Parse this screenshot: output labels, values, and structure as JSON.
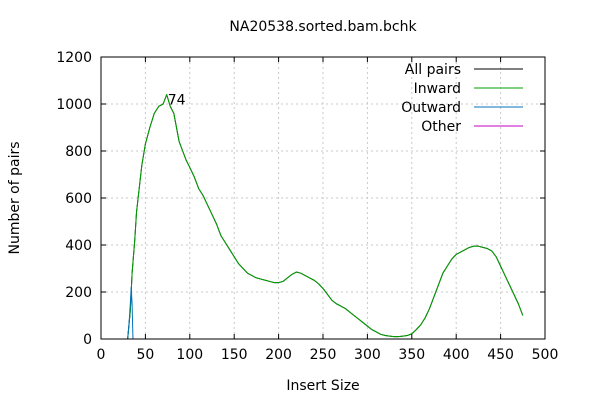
{
  "chart_data": {
    "type": "line",
    "title": "NA20538.sorted.bam.bchk",
    "xlabel": "Insert Size",
    "ylabel": "Number of pairs",
    "xlim": [
      0,
      500
    ],
    "ylim": [
      0,
      1200
    ],
    "xticks": [
      0,
      50,
      100,
      150,
      200,
      250,
      300,
      350,
      400,
      450,
      500
    ],
    "yticks": [
      0,
      200,
      400,
      600,
      800,
      1000,
      1200
    ],
    "grid": true,
    "legend_position": "top-right",
    "annotations": [
      {
        "text": "74",
        "x": 74,
        "y": 1040
      }
    ],
    "series": [
      {
        "name": "All pairs",
        "color": "#000000",
        "points": [
          [
            30,
            0
          ],
          [
            33,
            120
          ],
          [
            35,
            280
          ],
          [
            38,
            420
          ],
          [
            40,
            540
          ],
          [
            43,
            640
          ],
          [
            46,
            740
          ],
          [
            50,
            830
          ],
          [
            55,
            900
          ],
          [
            60,
            960
          ],
          [
            65,
            990
          ],
          [
            70,
            1000
          ],
          [
            74,
            1040
          ],
          [
            78,
            990
          ],
          [
            82,
            960
          ],
          [
            85,
            900
          ],
          [
            88,
            840
          ],
          [
            92,
            800
          ],
          [
            96,
            760
          ],
          [
            100,
            730
          ],
          [
            105,
            690
          ],
          [
            110,
            640
          ],
          [
            115,
            610
          ],
          [
            120,
            570
          ],
          [
            125,
            530
          ],
          [
            130,
            490
          ],
          [
            135,
            440
          ],
          [
            140,
            410
          ],
          [
            145,
            380
          ],
          [
            150,
            350
          ],
          [
            155,
            320
          ],
          [
            160,
            300
          ],
          [
            165,
            280
          ],
          [
            170,
            270
          ],
          [
            175,
            260
          ],
          [
            180,
            255
          ],
          [
            185,
            250
          ],
          [
            190,
            245
          ],
          [
            195,
            240
          ],
          [
            200,
            240
          ],
          [
            205,
            245
          ],
          [
            210,
            260
          ],
          [
            215,
            275
          ],
          [
            220,
            285
          ],
          [
            225,
            280
          ],
          [
            230,
            270
          ],
          [
            235,
            260
          ],
          [
            240,
            250
          ],
          [
            245,
            235
          ],
          [
            250,
            215
          ],
          [
            255,
            190
          ],
          [
            260,
            165
          ],
          [
            265,
            150
          ],
          [
            270,
            140
          ],
          [
            275,
            130
          ],
          [
            280,
            115
          ],
          [
            285,
            100
          ],
          [
            290,
            85
          ],
          [
            295,
            70
          ],
          [
            300,
            55
          ],
          [
            305,
            40
          ],
          [
            310,
            30
          ],
          [
            315,
            20
          ],
          [
            320,
            15
          ],
          [
            325,
            12
          ],
          [
            330,
            10
          ],
          [
            335,
            10
          ],
          [
            340,
            12
          ],
          [
            345,
            15
          ],
          [
            350,
            22
          ],
          [
            355,
            40
          ],
          [
            360,
            60
          ],
          [
            365,
            90
          ],
          [
            370,
            130
          ],
          [
            375,
            180
          ],
          [
            380,
            230
          ],
          [
            385,
            280
          ],
          [
            390,
            310
          ],
          [
            395,
            340
          ],
          [
            400,
            360
          ],
          [
            405,
            370
          ],
          [
            410,
            380
          ],
          [
            415,
            390
          ],
          [
            420,
            395
          ],
          [
            425,
            395
          ],
          [
            430,
            390
          ],
          [
            435,
            385
          ],
          [
            440,
            375
          ],
          [
            445,
            350
          ],
          [
            450,
            310
          ],
          [
            455,
            270
          ],
          [
            460,
            230
          ],
          [
            465,
            190
          ],
          [
            470,
            150
          ],
          [
            475,
            100
          ]
        ]
      },
      {
        "name": "Inward",
        "color": "#00a000",
        "points": [
          [
            30,
            0
          ],
          [
            33,
            120
          ],
          [
            35,
            280
          ],
          [
            38,
            420
          ],
          [
            40,
            540
          ],
          [
            43,
            640
          ],
          [
            46,
            740
          ],
          [
            50,
            830
          ],
          [
            55,
            900
          ],
          [
            60,
            960
          ],
          [
            65,
            990
          ],
          [
            70,
            1000
          ],
          [
            74,
            1040
          ],
          [
            78,
            990
          ],
          [
            82,
            960
          ],
          [
            85,
            900
          ],
          [
            88,
            840
          ],
          [
            92,
            800
          ],
          [
            96,
            760
          ],
          [
            100,
            730
          ],
          [
            105,
            690
          ],
          [
            110,
            640
          ],
          [
            115,
            610
          ],
          [
            120,
            570
          ],
          [
            125,
            530
          ],
          [
            130,
            490
          ],
          [
            135,
            440
          ],
          [
            140,
            410
          ],
          [
            145,
            380
          ],
          [
            150,
            350
          ],
          [
            155,
            320
          ],
          [
            160,
            300
          ],
          [
            165,
            280
          ],
          [
            170,
            270
          ],
          [
            175,
            260
          ],
          [
            180,
            255
          ],
          [
            185,
            250
          ],
          [
            190,
            245
          ],
          [
            195,
            240
          ],
          [
            200,
            240
          ],
          [
            205,
            245
          ],
          [
            210,
            260
          ],
          [
            215,
            275
          ],
          [
            220,
            285
          ],
          [
            225,
            280
          ],
          [
            230,
            270
          ],
          [
            235,
            260
          ],
          [
            240,
            250
          ],
          [
            245,
            235
          ],
          [
            250,
            215
          ],
          [
            255,
            190
          ],
          [
            260,
            165
          ],
          [
            265,
            150
          ],
          [
            270,
            140
          ],
          [
            275,
            130
          ],
          [
            280,
            115
          ],
          [
            285,
            100
          ],
          [
            290,
            85
          ],
          [
            295,
            70
          ],
          [
            300,
            55
          ],
          [
            305,
            40
          ],
          [
            310,
            30
          ],
          [
            315,
            20
          ],
          [
            320,
            15
          ],
          [
            325,
            12
          ],
          [
            330,
            10
          ],
          [
            335,
            10
          ],
          [
            340,
            12
          ],
          [
            345,
            15
          ],
          [
            350,
            22
          ],
          [
            355,
            40
          ],
          [
            360,
            60
          ],
          [
            365,
            90
          ],
          [
            370,
            130
          ],
          [
            375,
            180
          ],
          [
            380,
            230
          ],
          [
            385,
            280
          ],
          [
            390,
            310
          ],
          [
            395,
            340
          ],
          [
            400,
            360
          ],
          [
            405,
            370
          ],
          [
            410,
            380
          ],
          [
            415,
            390
          ],
          [
            420,
            395
          ],
          [
            425,
            395
          ],
          [
            430,
            390
          ],
          [
            435,
            385
          ],
          [
            440,
            375
          ],
          [
            445,
            350
          ],
          [
            450,
            310
          ],
          [
            455,
            270
          ],
          [
            460,
            230
          ],
          [
            465,
            190
          ],
          [
            470,
            150
          ],
          [
            475,
            100
          ]
        ]
      },
      {
        "name": "Outward",
        "color": "#0072bd",
        "points": [
          [
            30,
            0
          ],
          [
            31,
            40
          ],
          [
            32,
            90
          ],
          [
            33,
            150
          ],
          [
            34,
            220
          ],
          [
            35,
            150
          ],
          [
            36,
            0
          ]
        ]
      },
      {
        "name": "Other",
        "color": "#c000c0",
        "points": []
      }
    ]
  }
}
